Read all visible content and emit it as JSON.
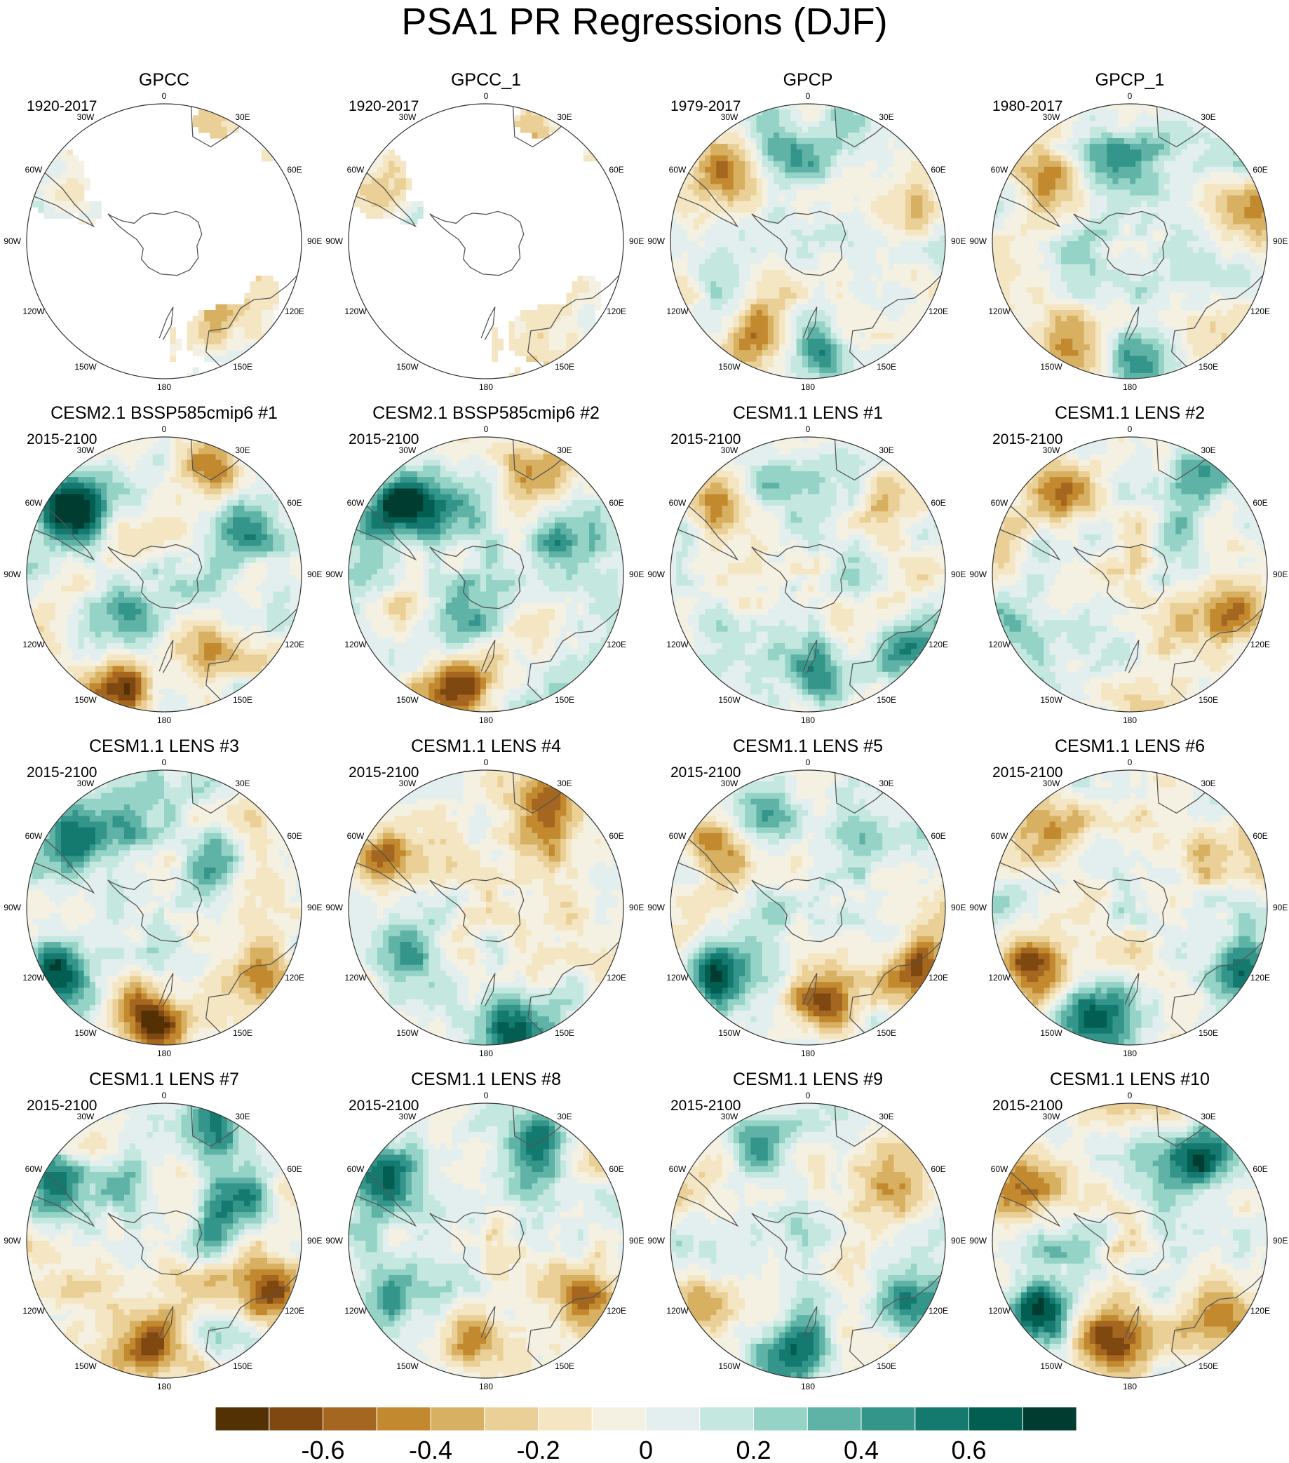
{
  "figure": {
    "title": "PSA1 PR Regressions (DJF)"
  },
  "panel_lon_labels": {
    "top": "0",
    "bottom": "180",
    "left": "90W",
    "right": "90E",
    "upper_left": "30W",
    "upper_right": "30E",
    "mid_left": "60W",
    "mid_right": "60E",
    "lower_left": "120W",
    "lower_right": "120E",
    "bottom_left": "150W",
    "bottom_right": "150E"
  },
  "chart_data": [
    {
      "type": "heatmap",
      "title": "GPCC",
      "subtitle": "1920-2017",
      "coverage": "land-only",
      "pattern": [
        {
          "lon": -40,
          "dist": 0.75,
          "value": 0.1
        },
        {
          "lon": 145,
          "dist": 0.7,
          "value": -0.2
        },
        {
          "lon": 20,
          "dist": 0.85,
          "value": -0.2
        }
      ]
    },
    {
      "type": "heatmap",
      "title": "GPCC_1",
      "subtitle": "1920-2017",
      "coverage": "land-only",
      "pattern": [
        {
          "lon": -40,
          "dist": 0.75,
          "value": 0.1
        },
        {
          "lon": 145,
          "dist": 0.7,
          "value": -0.2
        },
        {
          "lon": 20,
          "dist": 0.85,
          "value": -0.2
        }
      ]
    },
    {
      "type": "heatmap",
      "title": "GPCP",
      "subtitle": "1979-2017",
      "pattern": [
        {
          "lon": -150,
          "dist": 0.8,
          "value": -0.6
        },
        {
          "lon": 175,
          "dist": 0.85,
          "value": 0.6
        },
        {
          "lon": -50,
          "dist": 0.75,
          "value": -0.5
        },
        {
          "lon": 75,
          "dist": 0.85,
          "value": -0.4
        },
        {
          "lon": 20,
          "dist": 0.8,
          "value": 0.3
        },
        {
          "lon": -20,
          "dist": 0.6,
          "value": 0.3
        }
      ]
    },
    {
      "type": "heatmap",
      "title": "GPCP_1",
      "subtitle": "1980-2017",
      "pattern": [
        {
          "lon": -150,
          "dist": 0.8,
          "value": -0.6
        },
        {
          "lon": 175,
          "dist": 0.85,
          "value": 0.6
        },
        {
          "lon": -50,
          "dist": 0.75,
          "value": -0.5
        },
        {
          "lon": 75,
          "dist": 0.85,
          "value": -0.4
        },
        {
          "lon": 20,
          "dist": 0.8,
          "value": 0.3
        },
        {
          "lon": -20,
          "dist": 0.6,
          "value": 0.3
        }
      ]
    },
    {
      "type": "heatmap",
      "title": "CESM2.1 BSSP585cmip6 #1",
      "subtitle": "2015-2100",
      "pattern": [
        {
          "lon": -160,
          "dist": 0.85,
          "value": -0.75
        },
        {
          "lon": -55,
          "dist": 0.8,
          "value": 0.7
        },
        {
          "lon": 25,
          "dist": 0.85,
          "value": -0.5
        },
        {
          "lon": 60,
          "dist": 0.6,
          "value": 0.5
        },
        {
          "lon": -150,
          "dist": 0.4,
          "value": 0.3
        },
        {
          "lon": 150,
          "dist": 0.55,
          "value": -0.3
        }
      ]
    },
    {
      "type": "heatmap",
      "title": "CESM2.1 BSSP585cmip6 #2",
      "subtitle": "2015-2100",
      "pattern": [
        {
          "lon": -165,
          "dist": 0.85,
          "value": -0.75
        },
        {
          "lon": -55,
          "dist": 0.8,
          "value": 0.7
        },
        {
          "lon": 25,
          "dist": 0.85,
          "value": -0.4
        },
        {
          "lon": 65,
          "dist": 0.65,
          "value": 0.5
        },
        {
          "lon": -30,
          "dist": 0.7,
          "value": 0.5
        },
        {
          "lon": -150,
          "dist": 0.4,
          "value": 0.3
        }
      ]
    },
    {
      "type": "heatmap",
      "title": "CESM1.1 LENS #1",
      "subtitle": "2015-2100",
      "pattern": [
        {
          "lon": 170,
          "dist": 0.85,
          "value": 0.5
        },
        {
          "lon": 125,
          "dist": 0.85,
          "value": 0.5
        },
        {
          "lon": 50,
          "dist": 0.65,
          "value": -0.4
        },
        {
          "lon": -55,
          "dist": 0.8,
          "value": -0.4
        },
        {
          "lon": -20,
          "dist": 0.75,
          "value": 0.3
        }
      ]
    },
    {
      "type": "heatmap",
      "title": "CESM1.1 LENS #2",
      "subtitle": "2015-2100",
      "pattern": [
        {
          "lon": -40,
          "dist": 0.75,
          "value": -0.4
        },
        {
          "lon": 40,
          "dist": 0.9,
          "value": 0.5
        },
        {
          "lon": -120,
          "dist": 0.8,
          "value": 0.3
        },
        {
          "lon": 150,
          "dist": 0.6,
          "value": -0.3
        },
        {
          "lon": 110,
          "dist": 0.85,
          "value": -0.4
        }
      ]
    },
    {
      "type": "heatmap",
      "title": "CESM1.1 LENS #3",
      "subtitle": "2015-2100",
      "pattern": [
        {
          "lon": -170,
          "dist": 0.8,
          "value": -0.75
        },
        {
          "lon": -120,
          "dist": 0.9,
          "value": 0.7
        },
        {
          "lon": -55,
          "dist": 0.85,
          "value": 0.6
        },
        {
          "lon": 120,
          "dist": 0.85,
          "value": -0.5
        },
        {
          "lon": 50,
          "dist": 0.6,
          "value": 0.4
        },
        {
          "lon": -30,
          "dist": 0.6,
          "value": 0.4
        }
      ]
    },
    {
      "type": "heatmap",
      "title": "CESM1.1 LENS #4",
      "subtitle": "2015-2100",
      "pattern": [
        {
          "lon": 165,
          "dist": 0.85,
          "value": 0.6
        },
        {
          "lon": 30,
          "dist": 0.9,
          "value": -0.5
        },
        {
          "lon": 40,
          "dist": 0.6,
          "value": -0.3
        },
        {
          "lon": -60,
          "dist": 0.85,
          "value": -0.5
        },
        {
          "lon": -120,
          "dist": 0.65,
          "value": 0.3
        }
      ]
    },
    {
      "type": "heatmap",
      "title": "CESM1.1 LENS #5",
      "subtitle": "2015-2100",
      "pattern": [
        {
          "lon": 170,
          "dist": 0.75,
          "value": -0.6
        },
        {
          "lon": -125,
          "dist": 0.85,
          "value": 0.7
        },
        {
          "lon": -55,
          "dist": 0.85,
          "value": -0.5
        },
        {
          "lon": 120,
          "dist": 0.85,
          "value": -0.6
        },
        {
          "lon": 45,
          "dist": 0.7,
          "value": 0.4
        },
        {
          "lon": -20,
          "dist": 0.75,
          "value": 0.3
        }
      ]
    },
    {
      "type": "heatmap",
      "title": "CESM1.1 LENS #6",
      "subtitle": "2015-2100",
      "pattern": [
        {
          "lon": -160,
          "dist": 0.85,
          "value": 0.7
        },
        {
          "lon": -120,
          "dist": 0.85,
          "value": -0.6
        },
        {
          "lon": 120,
          "dist": 0.9,
          "value": 0.7
        },
        {
          "lon": 55,
          "dist": 0.7,
          "value": -0.4
        },
        {
          "lon": -50,
          "dist": 0.8,
          "value": -0.4
        }
      ]
    },
    {
      "type": "heatmap",
      "title": "CESM1.1 LENS #7",
      "subtitle": "2015-2100",
      "pattern": [
        {
          "lon": -175,
          "dist": 0.75,
          "value": -0.6
        },
        {
          "lon": 25,
          "dist": 0.85,
          "value": 0.6
        },
        {
          "lon": 60,
          "dist": 0.55,
          "value": 0.4
        },
        {
          "lon": -60,
          "dist": 0.85,
          "value": 0.6
        },
        {
          "lon": 120,
          "dist": 0.9,
          "value": -0.5
        },
        {
          "lon": -20,
          "dist": 0.6,
          "value": 0.3
        }
      ]
    },
    {
      "type": "heatmap",
      "title": "CESM1.1 LENS #8",
      "subtitle": "2015-2100",
      "pattern": [
        {
          "lon": -170,
          "dist": 0.75,
          "value": -0.5
        },
        {
          "lon": 120,
          "dist": 0.85,
          "value": -0.5
        },
        {
          "lon": -60,
          "dist": 0.85,
          "value": 0.6
        },
        {
          "lon": 30,
          "dist": 0.85,
          "value": 0.5
        },
        {
          "lon": -120,
          "dist": 0.85,
          "value": 0.3
        }
      ]
    },
    {
      "type": "heatmap",
      "title": "CESM1.1 LENS #9",
      "subtitle": "2015-2100",
      "pattern": [
        {
          "lon": -175,
          "dist": 0.85,
          "value": 0.7
        },
        {
          "lon": -125,
          "dist": 0.85,
          "value": -0.6
        },
        {
          "lon": 120,
          "dist": 0.85,
          "value": 0.5
        },
        {
          "lon": -30,
          "dist": 0.75,
          "value": 0.5
        },
        {
          "lon": 60,
          "dist": 0.75,
          "value": -0.4
        }
      ]
    },
    {
      "type": "heatmap",
      "title": "CESM1.1 LENS #10",
      "subtitle": "2015-2100",
      "pattern": [
        {
          "lon": -165,
          "dist": 0.75,
          "value": -0.6
        },
        {
          "lon": -125,
          "dist": 0.85,
          "value": 0.7
        },
        {
          "lon": 40,
          "dist": 0.75,
          "value": 0.6
        },
        {
          "lon": -60,
          "dist": 0.85,
          "value": -0.4
        },
        {
          "lon": 130,
          "dist": 0.85,
          "value": -0.5
        }
      ]
    }
  ],
  "colorbar": {
    "levels": [
      -0.8,
      -0.7,
      -0.6,
      -0.5,
      -0.4,
      -0.3,
      -0.2,
      -0.1,
      0,
      0.1,
      0.2,
      0.3,
      0.4,
      0.5,
      0.6,
      0.7,
      0.8
    ],
    "colors": [
      "#543005",
      "#7f4810",
      "#a5661f",
      "#c3892f",
      "#d8b062",
      "#ead097",
      "#f4e6c3",
      "#f5f1e2",
      "#e3efee",
      "#c4e8e0",
      "#94d3c6",
      "#5fb3a6",
      "#34958b",
      "#147a70",
      "#035e52",
      "#003c30"
    ],
    "tick_labels": [
      {
        "level": -0.6,
        "label": "-0.6"
      },
      {
        "level": -0.4,
        "label": "-0.4"
      },
      {
        "level": -0.2,
        "label": "-0.2"
      },
      {
        "level": 0,
        "label": "0"
      },
      {
        "level": 0.2,
        "label": "0.2"
      },
      {
        "level": 0.4,
        "label": "0.4"
      },
      {
        "level": 0.6,
        "label": "0.6"
      }
    ]
  }
}
